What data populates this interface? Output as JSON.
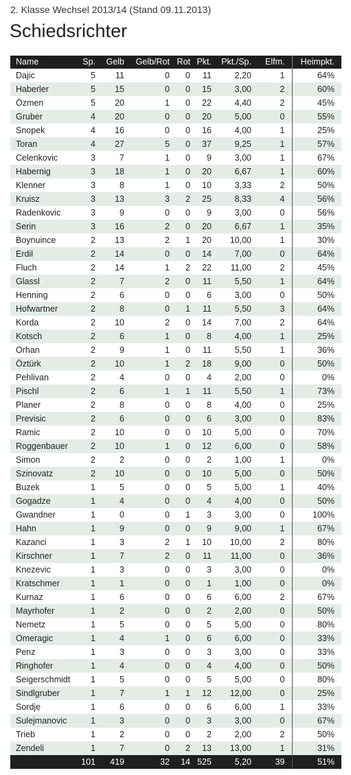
{
  "header": {
    "subtitle": "2. Klasse Wechsel 2013/14 (Stand 09.11.2013)",
    "title": "Schiedsrichter"
  },
  "table": {
    "columns": [
      "Name",
      "Sp.",
      "Gelb",
      "Gelb/Rot",
      "Rot",
      "Pkt.",
      "Pkt./Sp.",
      "Elfm.",
      "Heimpkt."
    ],
    "rows": [
      [
        "Dajic",
        "5",
        "11",
        "0",
        "0",
        "11",
        "2,20",
        "1",
        "64%"
      ],
      [
        "Haberler",
        "5",
        "15",
        "0",
        "0",
        "15",
        "3,00",
        "2",
        "60%"
      ],
      [
        "Özmen",
        "5",
        "20",
        "1",
        "0",
        "22",
        "4,40",
        "2",
        "45%"
      ],
      [
        "Gruber",
        "4",
        "20",
        "0",
        "0",
        "20",
        "5,00",
        "0",
        "55%"
      ],
      [
        "Snopek",
        "4",
        "16",
        "0",
        "0",
        "16",
        "4,00",
        "1",
        "25%"
      ],
      [
        "Toran",
        "4",
        "27",
        "5",
        "0",
        "37",
        "9,25",
        "1",
        "57%"
      ],
      [
        "Celenkovic",
        "3",
        "7",
        "1",
        "0",
        "9",
        "3,00",
        "1",
        "67%"
      ],
      [
        "Habernig",
        "3",
        "18",
        "1",
        "0",
        "20",
        "6,67",
        "1",
        "60%"
      ],
      [
        "Klenner",
        "3",
        "8",
        "1",
        "0",
        "10",
        "3,33",
        "2",
        "50%"
      ],
      [
        "Kruisz",
        "3",
        "13",
        "3",
        "2",
        "25",
        "8,33",
        "4",
        "56%"
      ],
      [
        "Radenkovic",
        "3",
        "9",
        "0",
        "0",
        "9",
        "3,00",
        "0",
        "56%"
      ],
      [
        "Serin",
        "3",
        "16",
        "2",
        "0",
        "20",
        "6,67",
        "1",
        "35%"
      ],
      [
        "Boynuince",
        "2",
        "13",
        "2",
        "1",
        "20",
        "10,00",
        "1",
        "30%"
      ],
      [
        "Erdil",
        "2",
        "14",
        "0",
        "0",
        "14",
        "7,00",
        "0",
        "64%"
      ],
      [
        "Fluch",
        "2",
        "14",
        "1",
        "2",
        "22",
        "11,00",
        "2",
        "45%"
      ],
      [
        "Glassl",
        "2",
        "7",
        "2",
        "0",
        "11",
        "5,50",
        "1",
        "64%"
      ],
      [
        "Henning",
        "2",
        "6",
        "0",
        "0",
        "6",
        "3,00",
        "0",
        "50%"
      ],
      [
        "Hofwartner",
        "2",
        "8",
        "0",
        "1",
        "11",
        "5,50",
        "3",
        "64%"
      ],
      [
        "Korda",
        "2",
        "10",
        "2",
        "0",
        "14",
        "7,00",
        "2",
        "64%"
      ],
      [
        "Kotsch",
        "2",
        "6",
        "1",
        "0",
        "8",
        "4,00",
        "1",
        "25%"
      ],
      [
        "Orhan",
        "2",
        "9",
        "1",
        "0",
        "11",
        "5,50",
        "1",
        "36%"
      ],
      [
        "Öztürk",
        "2",
        "10",
        "1",
        "2",
        "18",
        "9,00",
        "0",
        "50%"
      ],
      [
        "Pehlivan",
        "2",
        "4",
        "0",
        "0",
        "4",
        "2,00",
        "0",
        "0%"
      ],
      [
        "Pischl",
        "2",
        "6",
        "1",
        "1",
        "11",
        "5,50",
        "1",
        "73%"
      ],
      [
        "Planer",
        "2",
        "8",
        "0",
        "0",
        "8",
        "4,00",
        "0",
        "25%"
      ],
      [
        "Previsic",
        "2",
        "6",
        "0",
        "0",
        "6",
        "3,00",
        "0",
        "83%"
      ],
      [
        "Ramic",
        "2",
        "10",
        "0",
        "0",
        "10",
        "5,00",
        "0",
        "70%"
      ],
      [
        "Roggenbauer",
        "2",
        "10",
        "1",
        "0",
        "12",
        "6,00",
        "0",
        "58%"
      ],
      [
        "Simon",
        "2",
        "2",
        "0",
        "0",
        "2",
        "1,00",
        "1",
        "0%"
      ],
      [
        "Szinovatz",
        "2",
        "10",
        "0",
        "0",
        "10",
        "5,00",
        "0",
        "50%"
      ],
      [
        "Buzek",
        "1",
        "5",
        "0",
        "0",
        "5",
        "5,00",
        "1",
        "40%"
      ],
      [
        "Gogadze",
        "1",
        "4",
        "0",
        "0",
        "4",
        "4,00",
        "0",
        "50%"
      ],
      [
        "Gwandner",
        "1",
        "0",
        "0",
        "1",
        "3",
        "3,00",
        "0",
        "100%"
      ],
      [
        "Hahn",
        "1",
        "9",
        "0",
        "0",
        "9",
        "9,00",
        "1",
        "67%"
      ],
      [
        "Kazanci",
        "1",
        "3",
        "2",
        "1",
        "10",
        "10,00",
        "2",
        "80%"
      ],
      [
        "Kirschner",
        "1",
        "7",
        "2",
        "0",
        "11",
        "11,00",
        "0",
        "36%"
      ],
      [
        "Knezevic",
        "1",
        "3",
        "0",
        "0",
        "3",
        "3,00",
        "0",
        "0%"
      ],
      [
        "Kratschmer",
        "1",
        "1",
        "0",
        "0",
        "1",
        "1,00",
        "0",
        "0%"
      ],
      [
        "Kurnaz",
        "1",
        "6",
        "0",
        "0",
        "6",
        "6,00",
        "2",
        "67%"
      ],
      [
        "Mayrhofer",
        "1",
        "2",
        "0",
        "0",
        "2",
        "2,00",
        "0",
        "50%"
      ],
      [
        "Nemetz",
        "1",
        "5",
        "0",
        "0",
        "5",
        "5,00",
        "0",
        "80%"
      ],
      [
        "Omeragic",
        "1",
        "4",
        "1",
        "0",
        "6",
        "6,00",
        "0",
        "33%"
      ],
      [
        "Penz",
        "1",
        "3",
        "0",
        "0",
        "3",
        "3,00",
        "0",
        "33%"
      ],
      [
        "Ringhofer",
        "1",
        "4",
        "0",
        "0",
        "4",
        "4,00",
        "0",
        "50%"
      ],
      [
        "Seigerschmidt",
        "1",
        "5",
        "0",
        "0",
        "5",
        "5,00",
        "0",
        "80%"
      ],
      [
        "Sindlgruber",
        "1",
        "7",
        "1",
        "1",
        "12",
        "12,00",
        "0",
        "25%"
      ],
      [
        "Sordje",
        "1",
        "6",
        "0",
        "0",
        "6",
        "6,00",
        "1",
        "33%"
      ],
      [
        "Sulejmanovic",
        "1",
        "3",
        "0",
        "0",
        "3",
        "3,00",
        "0",
        "67%"
      ],
      [
        "Trieb",
        "1",
        "2",
        "0",
        "0",
        "2",
        "2,00",
        "2",
        "50%"
      ],
      [
        "Zendeli",
        "1",
        "7",
        "0",
        "2",
        "13",
        "13,00",
        "1",
        "31%"
      ]
    ],
    "totals": [
      "",
      "101",
      "419",
      "32",
      "14",
      "525",
      "5,20",
      "39",
      "51%"
    ]
  }
}
